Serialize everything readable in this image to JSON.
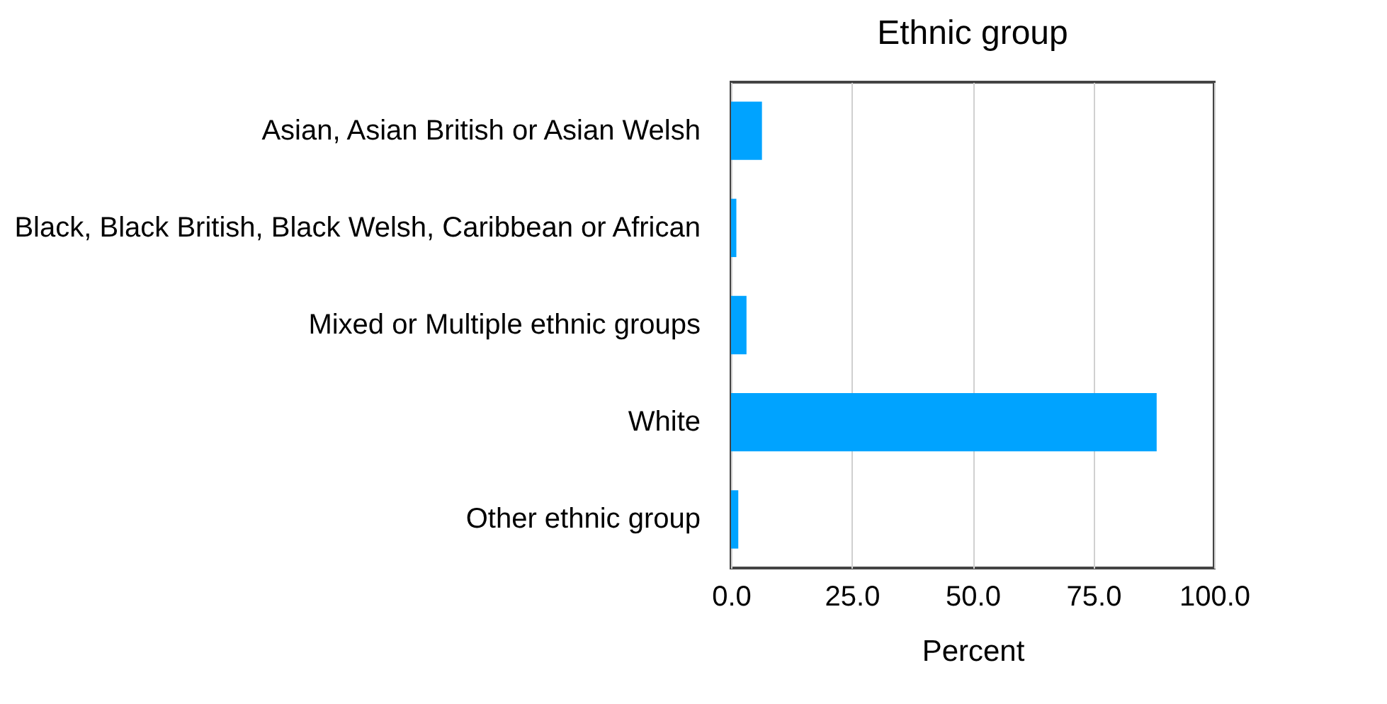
{
  "chart_data": {
    "type": "bar",
    "orientation": "horizontal",
    "title": "Ethnic group",
    "xlabel": "Percent",
    "categories": [
      "Asian, Asian British or Asian Welsh",
      "Black, Black British, Black Welsh, Caribbean or African",
      "Mixed or Multiple ethnic groups",
      "White",
      "Other ethnic group"
    ],
    "values": [
      6.4,
      1.1,
      3.2,
      88.1,
      1.5
    ],
    "color": "#00a3ff",
    "xlim": [
      0,
      100
    ],
    "xticks": [
      {
        "value": 0,
        "label": "0.0"
      },
      {
        "value": 25,
        "label": "25.0"
      },
      {
        "value": 50,
        "label": "50.0"
      },
      {
        "value": 75,
        "label": "75.0"
      },
      {
        "value": 100,
        "label": "100.0"
      }
    ],
    "grid": "x"
  }
}
